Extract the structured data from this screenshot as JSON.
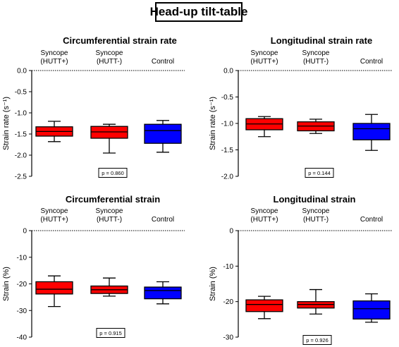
{
  "figure_title": "Head-up tilt-table",
  "colors": {
    "hutt_pos": "#ff0000",
    "hutt_neg": "#ff0000",
    "control": "#0000ff"
  },
  "chart_data": [
    {
      "type": "box",
      "title": "Circumferential strain rate",
      "ylabel": "Strain rate (s⁻¹)",
      "ylim": [
        -2.5,
        0
      ],
      "yticks": [
        0,
        -0.5,
        -1.0,
        -1.5,
        -2.0,
        -2.5
      ],
      "yticklabels": [
        "0.0",
        "-0.5",
        "-1.0",
        "-1.5",
        "-2.0",
        "-2.5"
      ],
      "categories": [
        [
          "Syncope",
          "(HUTT+)"
        ],
        [
          "Syncope",
          "(HUTT-)"
        ],
        [
          "Control"
        ]
      ],
      "boxes": [
        {
          "min": -1.68,
          "q1": -1.55,
          "median": -1.44,
          "q3": -1.33,
          "max": -1.2
        },
        {
          "min": -1.95,
          "q1": -1.6,
          "median": -1.45,
          "q3": -1.32,
          "max": -1.27
        },
        {
          "min": -1.93,
          "q1": -1.72,
          "median": -1.42,
          "q3": -1.27,
          "max": -1.18
        }
      ],
      "p_value": "p = 0.860"
    },
    {
      "type": "box",
      "title": "Longitudinal strain rate",
      "ylabel": "Strain rate (s⁻¹)",
      "ylim": [
        -2.0,
        0
      ],
      "yticks": [
        0,
        -0.5,
        -1.0,
        -1.5,
        -2.0
      ],
      "yticklabels": [
        "0.0",
        "-0.5",
        "-1.0",
        "-1.5",
        "-2.0"
      ],
      "categories": [
        [
          "Syncope",
          "(HUTT+)"
        ],
        [
          "Syncope",
          "(HUTT-)"
        ],
        [
          "Control"
        ]
      ],
      "boxes": [
        {
          "min": -1.25,
          "q1": -1.12,
          "median": -1.01,
          "q3": -0.91,
          "max": -0.87
        },
        {
          "min": -1.19,
          "q1": -1.14,
          "median": -1.05,
          "q3": -0.97,
          "max": -0.92
        },
        {
          "min": -1.51,
          "q1": -1.31,
          "median": -1.1,
          "q3": -1.0,
          "max": -0.83
        }
      ],
      "p_value": "p = 0.144"
    },
    {
      "type": "box",
      "title": "Circumferential strain",
      "ylabel": "Strain (%)",
      "ylim": [
        -40,
        0
      ],
      "yticks": [
        0,
        -10,
        -20,
        -30,
        -40
      ],
      "yticklabels": [
        "0",
        "-10",
        "-20",
        "-30",
        "-40"
      ],
      "categories": [
        [
          "Syncope",
          "(HUTT+)"
        ],
        [
          "Syncope",
          "(HUTT-)"
        ],
        [
          "Control"
        ]
      ],
      "boxes": [
        {
          "min": -28.5,
          "q1": -23.8,
          "median": -22.0,
          "q3": -19.2,
          "max": -17.0
        },
        {
          "min": -24.6,
          "q1": -23.6,
          "median": -22.2,
          "q3": -20.8,
          "max": -17.8
        },
        {
          "min": -27.5,
          "q1": -25.6,
          "median": -22.5,
          "q3": -21.2,
          "max": -19.2
        }
      ],
      "p_value": "p = 0.915"
    },
    {
      "type": "box",
      "title": "Longitudinal strain",
      "ylabel": "Strain (%)",
      "ylim": [
        -30,
        0
      ],
      "yticks": [
        0,
        -10,
        -20,
        -30
      ],
      "yticklabels": [
        "0",
        "-10",
        "-20",
        "-30"
      ],
      "categories": [
        [
          "Syncope",
          "(HUTT+)"
        ],
        [
          "Syncope",
          "(HUTT-)"
        ],
        [
          "Control"
        ]
      ],
      "boxes": [
        {
          "min": -24.8,
          "q1": -22.8,
          "median": -20.8,
          "q3": -19.5,
          "max": -18.5
        },
        {
          "min": -23.5,
          "q1": -21.8,
          "median": -20.8,
          "q3": -20.0,
          "max": -16.6
        },
        {
          "min": -25.8,
          "q1": -24.9,
          "median": -22.0,
          "q3": -19.8,
          "max": -17.8
        }
      ],
      "p_value": "p = 0.926"
    }
  ]
}
